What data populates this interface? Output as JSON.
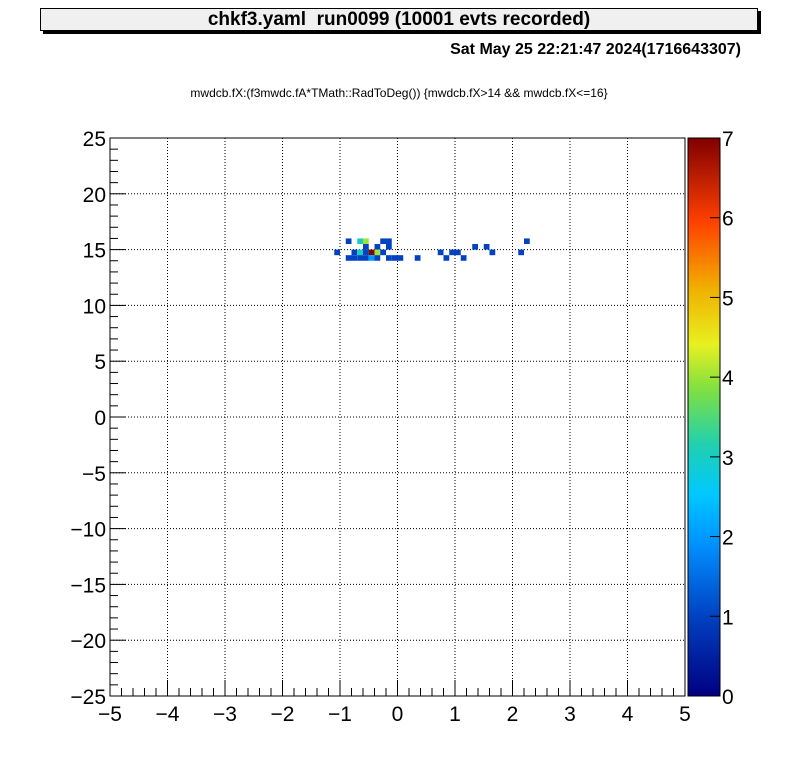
{
  "header": {
    "title": "chkf3.yaml  run0099 (10001 evts recorded)",
    "datestamp": "Sat May 25 22:21:47 2024(1716643307)"
  },
  "chart_data": {
    "type": "heatmap",
    "title": "mwdcb.fX:(f3mwdc.fA*TMath::RadToDeg()) {mwdcb.fX>14 && mwdcb.fX<=16}",
    "xlabel": "",
    "ylabel": "",
    "xlim": [
      -5,
      5
    ],
    "ylim": [
      -25,
      25
    ],
    "x_ticks": [
      "−5",
      "−4",
      "−3",
      "−2",
      "−1",
      "0",
      "1",
      "2",
      "3",
      "4",
      "5"
    ],
    "y_ticks": [
      "−25",
      "−20",
      "−15",
      "−10",
      "−5",
      "0",
      "5",
      "10",
      "15",
      "20",
      "25"
    ],
    "grid": true,
    "bin_size": [
      0.1,
      0.5
    ],
    "colorbar": {
      "min": 0,
      "max": 7,
      "ticks": [
        "0",
        "1",
        "2",
        "3",
        "4",
        "5",
        "6",
        "7"
      ]
    },
    "cells": [
      {
        "x": -1.05,
        "y": 14.75,
        "z": 1
      },
      {
        "x": -0.85,
        "y": 15.75,
        "z": 1
      },
      {
        "x": -0.85,
        "y": 14.25,
        "z": 1
      },
      {
        "x": -0.75,
        "y": 14.75,
        "z": 1
      },
      {
        "x": -0.75,
        "y": 14.25,
        "z": 1
      },
      {
        "x": -0.65,
        "y": 15.75,
        "z": 3
      },
      {
        "x": -0.65,
        "y": 14.75,
        "z": 3
      },
      {
        "x": -0.65,
        "y": 14.25,
        "z": 1
      },
      {
        "x": -0.55,
        "y": 15.75,
        "z": 4
      },
      {
        "x": -0.55,
        "y": 15.25,
        "z": 1
      },
      {
        "x": -0.55,
        "y": 14.75,
        "z": 1
      },
      {
        "x": -0.55,
        "y": 14.25,
        "z": 1
      },
      {
        "x": -0.45,
        "y": 14.75,
        "z": 7
      },
      {
        "x": -0.45,
        "y": 14.25,
        "z": 2
      },
      {
        "x": -0.35,
        "y": 15.25,
        "z": 1
      },
      {
        "x": -0.35,
        "y": 14.75,
        "z": 4
      },
      {
        "x": -0.35,
        "y": 14.25,
        "z": 1
      },
      {
        "x": -0.25,
        "y": 15.75,
        "z": 1
      },
      {
        "x": -0.25,
        "y": 14.75,
        "z": 1
      },
      {
        "x": -0.15,
        "y": 15.75,
        "z": 1
      },
      {
        "x": -0.15,
        "y": 15.25,
        "z": 1
      },
      {
        "x": -0.15,
        "y": 14.25,
        "z": 1
      },
      {
        "x": -0.05,
        "y": 14.25,
        "z": 1
      },
      {
        "x": 0.05,
        "y": 14.25,
        "z": 1
      },
      {
        "x": 0.35,
        "y": 14.25,
        "z": 1
      },
      {
        "x": 0.75,
        "y": 14.75,
        "z": 1
      },
      {
        "x": 0.85,
        "y": 14.25,
        "z": 1
      },
      {
        "x": 0.95,
        "y": 14.75,
        "z": 1
      },
      {
        "x": 1.05,
        "y": 14.75,
        "z": 1
      },
      {
        "x": 1.15,
        "y": 14.25,
        "z": 1
      },
      {
        "x": 1.35,
        "y": 15.25,
        "z": 1
      },
      {
        "x": 1.55,
        "y": 15.25,
        "z": 1
      },
      {
        "x": 1.65,
        "y": 14.75,
        "z": 1
      },
      {
        "x": 2.15,
        "y": 14.75,
        "z": 1
      },
      {
        "x": 2.25,
        "y": 15.75,
        "z": 1
      }
    ]
  }
}
